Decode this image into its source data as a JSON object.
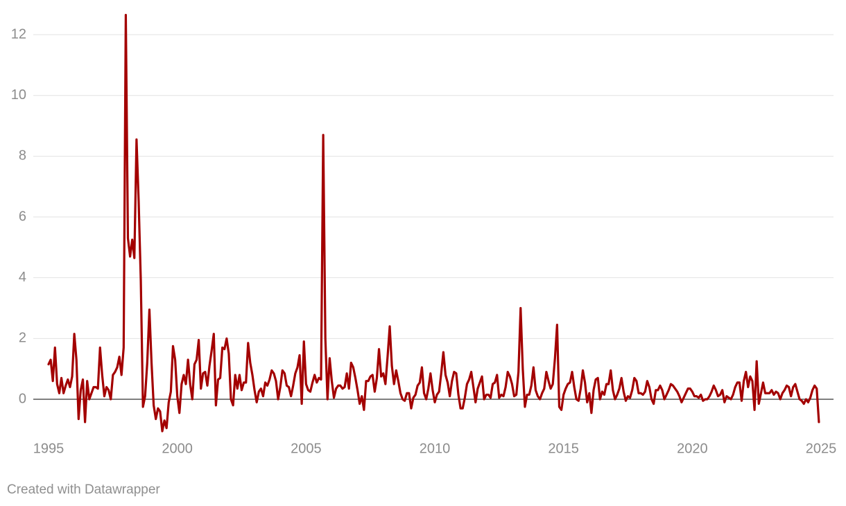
{
  "chart_data": {
    "type": "line",
    "credit": "Created with Datawrapper",
    "xlim": [
      1995,
      2025
    ],
    "xticks": [
      1995,
      2000,
      2005,
      2010,
      2015,
      2020,
      2025
    ],
    "ylim": [
      -1.2,
      12.7
    ],
    "yticks": [
      0,
      2,
      4,
      6,
      8,
      10,
      12
    ],
    "grid": true,
    "x": [
      1995,
      1995.083,
      1995.167,
      1995.25,
      1995.333,
      1995.417,
      1995.5,
      1995.583,
      1995.667,
      1995.75,
      1995.833,
      1995.917,
      1996,
      1996.083,
      1996.167,
      1996.25,
      1996.333,
      1996.417,
      1996.5,
      1996.583,
      1996.667,
      1996.75,
      1996.833,
      1996.917,
      1997,
      1997.083,
      1997.167,
      1997.25,
      1997.333,
      1997.417,
      1997.5,
      1997.583,
      1997.667,
      1997.75,
      1997.833,
      1997.917,
      1998,
      1998.083,
      1998.167,
      1998.25,
      1998.333,
      1998.417,
      1998.5,
      1998.583,
      1998.667,
      1998.75,
      1998.833,
      1998.917,
      1999,
      1999.083,
      1999.167,
      1999.25,
      1999.333,
      1999.417,
      1999.5,
      1999.583,
      1999.667,
      1999.75,
      1999.833,
      1999.917,
      2000,
      2000.083,
      2000.167,
      2000.25,
      2000.333,
      2000.417,
      2000.5,
      2000.583,
      2000.667,
      2000.75,
      2000.833,
      2000.917,
      2001,
      2001.083,
      2001.167,
      2001.25,
      2001.333,
      2001.417,
      2001.5,
      2001.583,
      2001.667,
      2001.75,
      2001.833,
      2001.917,
      2002,
      2002.083,
      2002.167,
      2002.25,
      2002.333,
      2002.417,
      2002.5,
      2002.583,
      2002.667,
      2002.75,
      2002.833,
      2002.917,
      2003,
      2003.083,
      2003.167,
      2003.25,
      2003.333,
      2003.417,
      2003.5,
      2003.583,
      2003.667,
      2003.75,
      2003.833,
      2003.917,
      2004,
      2004.083,
      2004.167,
      2004.25,
      2004.333,
      2004.417,
      2004.5,
      2004.583,
      2004.667,
      2004.75,
      2004.833,
      2004.917,
      2005,
      2005.083,
      2005.167,
      2005.25,
      2005.333,
      2005.417,
      2005.5,
      2005.583,
      2005.667,
      2005.75,
      2005.833,
      2005.917,
      2006,
      2006.083,
      2006.167,
      2006.25,
      2006.333,
      2006.417,
      2006.5,
      2006.583,
      2006.667,
      2006.75,
      2006.833,
      2006.917,
      2007,
      2007.083,
      2007.167,
      2007.25,
      2007.333,
      2007.417,
      2007.5,
      2007.583,
      2007.667,
      2007.75,
      2007.833,
      2007.917,
      2008,
      2008.083,
      2008.167,
      2008.25,
      2008.333,
      2008.417,
      2008.5,
      2008.583,
      2008.667,
      2008.75,
      2008.833,
      2008.917,
      2009,
      2009.083,
      2009.167,
      2009.25,
      2009.333,
      2009.417,
      2009.5,
      2009.583,
      2009.667,
      2009.75,
      2009.833,
      2009.917,
      2010,
      2010.083,
      2010.167,
      2010.25,
      2010.333,
      2010.417,
      2010.5,
      2010.583,
      2010.667,
      2010.75,
      2010.833,
      2010.917,
      2011,
      2011.083,
      2011.167,
      2011.25,
      2011.333,
      2011.417,
      2011.5,
      2011.583,
      2011.667,
      2011.75,
      2011.833,
      2011.917,
      2012,
      2012.083,
      2012.167,
      2012.25,
      2012.333,
      2012.417,
      2012.5,
      2012.583,
      2012.667,
      2012.75,
      2012.833,
      2012.917,
      2013,
      2013.083,
      2013.167,
      2013.25,
      2013.333,
      2013.417,
      2013.5,
      2013.583,
      2013.667,
      2013.75,
      2013.833,
      2013.917,
      2014,
      2014.083,
      2014.167,
      2014.25,
      2014.333,
      2014.417,
      2014.5,
      2014.583,
      2014.667,
      2014.75,
      2014.833,
      2014.917,
      2015,
      2015.083,
      2015.167,
      2015.25,
      2015.333,
      2015.417,
      2015.5,
      2015.583,
      2015.667,
      2015.75,
      2015.833,
      2015.917,
      2016,
      2016.083,
      2016.167,
      2016.25,
      2016.333,
      2016.417,
      2016.5,
      2016.583,
      2016.667,
      2016.75,
      2016.833,
      2016.917,
      2017,
      2017.083,
      2017.167,
      2017.25,
      2017.333,
      2017.417,
      2017.5,
      2017.583,
      2017.667,
      2017.75,
      2017.833,
      2017.917,
      2018,
      2018.083,
      2018.167,
      2018.25,
      2018.333,
      2018.417,
      2018.5,
      2018.583,
      2018.667,
      2018.75,
      2018.833,
      2018.917,
      2019,
      2019.083,
      2019.167,
      2019.25,
      2019.333,
      2019.417,
      2019.5,
      2019.583,
      2019.667,
      2019.75,
      2019.833,
      2019.917,
      2020,
      2020.083,
      2020.167,
      2020.25,
      2020.333,
      2020.417,
      2020.5,
      2020.583,
      2020.667,
      2020.75,
      2020.833,
      2020.917,
      2021,
      2021.083,
      2021.167,
      2021.25,
      2021.333,
      2021.417,
      2021.5,
      2021.583,
      2021.667,
      2021.75,
      2021.833,
      2021.917,
      2022,
      2022.083,
      2022.167,
      2022.25,
      2022.333,
      2022.417,
      2022.5,
      2022.583,
      2022.667,
      2022.75,
      2022.833,
      2022.917,
      2023,
      2023.083,
      2023.167,
      2023.25,
      2023.333,
      2023.417,
      2023.5,
      2023.583,
      2023.667,
      2023.75,
      2023.833,
      2023.917,
      2024,
      2024.083,
      2024.167,
      2024.25,
      2024.333,
      2024.417,
      2024.5,
      2024.583,
      2024.667,
      2024.75,
      2024.833,
      2024.917
    ],
    "series": [
      {
        "color": "#a30000",
        "values": [
          1.15,
          1.3,
          0.6,
          1.7,
          0.5,
          0.2,
          0.7,
          0.2,
          0.45,
          0.65,
          0.4,
          0.75,
          2.15,
          1.3,
          -0.65,
          0.3,
          0.65,
          -0.75,
          0.6,
          0.0,
          0.2,
          0.4,
          0.4,
          0.35,
          1.7,
          0.8,
          0.1,
          0.4,
          0.3,
          0.0,
          0.8,
          0.9,
          1.05,
          1.4,
          0.8,
          1.7,
          12.65,
          5.3,
          4.7,
          5.25,
          4.65,
          8.55,
          6.5,
          3.9,
          -0.25,
          0.1,
          1.2,
          2.95,
          1.2,
          -0.2,
          -0.65,
          -0.3,
          -0.4,
          -1.05,
          -0.7,
          -0.95,
          -0.1,
          0.25,
          1.75,
          1.3,
          0.1,
          -0.45,
          0.5,
          0.8,
          0.5,
          1.3,
          0.5,
          0.0,
          1.15,
          1.3,
          1.95,
          0.35,
          0.85,
          0.9,
          0.45,
          1.1,
          1.6,
          2.15,
          -0.2,
          0.65,
          0.7,
          1.7,
          1.65,
          2.0,
          1.5,
          0.0,
          -0.2,
          0.8,
          0.35,
          0.8,
          0.3,
          0.55,
          0.55,
          1.85,
          1.2,
          0.8,
          0.3,
          -0.1,
          0.25,
          0.35,
          0.1,
          0.55,
          0.45,
          0.65,
          0.95,
          0.85,
          0.6,
          0.0,
          0.4,
          0.95,
          0.85,
          0.45,
          0.4,
          0.1,
          0.45,
          0.85,
          1.05,
          1.45,
          -0.15,
          1.9,
          0.5,
          0.3,
          0.25,
          0.55,
          0.8,
          0.55,
          0.7,
          0.65,
          8.7,
          2.0,
          0.0,
          1.35,
          0.6,
          0.05,
          0.35,
          0.45,
          0.45,
          0.35,
          0.4,
          0.85,
          0.35,
          1.2,
          1.05,
          0.7,
          0.3,
          -0.15,
          0.1,
          -0.35,
          0.6,
          0.6,
          0.75,
          0.8,
          0.25,
          0.7,
          1.65,
          0.75,
          0.85,
          0.5,
          1.4,
          2.4,
          1.1,
          0.5,
          0.95,
          0.6,
          0.2,
          0.0,
          -0.05,
          0.2,
          0.2,
          -0.3,
          0.05,
          0.15,
          0.45,
          0.55,
          1.05,
          0.2,
          0.0,
          0.35,
          0.85,
          0.3,
          -0.1,
          0.15,
          0.25,
          0.85,
          1.55,
          0.8,
          0.55,
          0.1,
          0.6,
          0.9,
          0.85,
          0.15,
          -0.3,
          -0.3,
          0.05,
          0.5,
          0.65,
          0.9,
          0.4,
          -0.1,
          0.35,
          0.55,
          0.75,
          0.0,
          0.15,
          0.15,
          0.05,
          0.5,
          0.55,
          0.8,
          0.05,
          0.15,
          0.1,
          0.4,
          0.9,
          0.75,
          0.5,
          0.1,
          0.15,
          0.9,
          3.0,
          1.0,
          -0.25,
          0.15,
          0.15,
          0.45,
          1.05,
          0.3,
          0.1,
          0.0,
          0.2,
          0.35,
          0.9,
          0.6,
          0.35,
          0.5,
          1.35,
          2.45,
          -0.25,
          -0.35,
          0.15,
          0.35,
          0.5,
          0.55,
          0.9,
          0.4,
          0.0,
          -0.05,
          0.35,
          0.95,
          0.55,
          -0.1,
          0.2,
          -0.45,
          0.3,
          0.65,
          0.7,
          0.0,
          0.25,
          0.15,
          0.5,
          0.5,
          0.95,
          0.3,
          0.0,
          0.15,
          0.35,
          0.7,
          0.25,
          -0.05,
          0.1,
          0.05,
          0.3,
          0.7,
          0.6,
          0.2,
          0.2,
          0.15,
          0.25,
          0.6,
          0.4,
          0.0,
          -0.15,
          0.3,
          0.3,
          0.45,
          0.3,
          0.0,
          0.15,
          0.3,
          0.5,
          0.45,
          0.35,
          0.25,
          0.1,
          -0.1,
          0.05,
          0.2,
          0.35,
          0.35,
          0.25,
          0.1,
          0.1,
          0.05,
          0.15,
          -0.05,
          0.0,
          0.0,
          0.1,
          0.25,
          0.45,
          0.3,
          0.1,
          0.15,
          0.3,
          -0.1,
          0.1,
          0.05,
          0.0,
          0.15,
          0.4,
          0.55,
          0.55,
          -0.05,
          0.6,
          0.9,
          0.4,
          0.75,
          0.6,
          -0.35,
          1.25,
          -0.15,
          0.2,
          0.55,
          0.2,
          0.2,
          0.2,
          0.3,
          0.15,
          0.25,
          0.2,
          0.0,
          0.2,
          0.3,
          0.45,
          0.4,
          0.1,
          0.4,
          0.5,
          0.25,
          0.0,
          -0.05,
          -0.15,
          0.0,
          -0.1,
          0.05,
          0.3,
          0.45,
          0.35,
          -0.75
        ]
      }
    ]
  }
}
